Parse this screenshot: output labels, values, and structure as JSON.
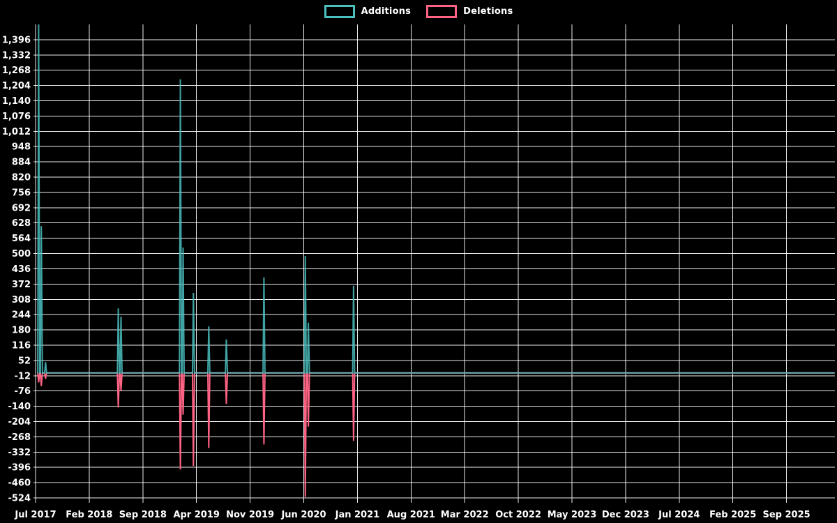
{
  "legend": {
    "additions_label": "Additions",
    "deletions_label": "Deletions"
  },
  "colors": {
    "background": "#000000",
    "additions": "#4bc0c0",
    "deletions": "#ff6384",
    "grid": "#ffffff",
    "axis_text": "#ffffff",
    "baseline_blend": "#78a9b1"
  },
  "chart_data": {
    "type": "line",
    "title": "",
    "xlabel": "",
    "ylabel": "",
    "legend_position": "top-center",
    "grid": "on",
    "background": "black",
    "ylim": [
      -524,
      1460
    ],
    "y_tick_step": 64,
    "y_ticks": [
      1396,
      1332,
      1268,
      1204,
      1140,
      1076,
      1012,
      948,
      884,
      820,
      756,
      692,
      628,
      564,
      500,
      436,
      372,
      308,
      244,
      180,
      116,
      52,
      -12,
      -76,
      -140,
      -204,
      -268,
      -332,
      -396,
      -460,
      -524
    ],
    "x_tick_labels": [
      "Jul 2017",
      "Feb 2018",
      "Sep 2018",
      "Apr 2019",
      "Nov 2019",
      "Jun 2020",
      "Jan 2021",
      "Aug 2021",
      "Mar 2022",
      "Oct 2022",
      "May 2023",
      "Dec 2023",
      "Jul 2024",
      "Feb 2025",
      "Sep 2025"
    ],
    "x_tick_interval_months": 7,
    "x_range_months_total": 104.3,
    "baseline_value": 0,
    "series": [
      {
        "name": "Additions",
        "color": "#4bc0c0"
      },
      {
        "name": "Deletions",
        "color": "#ff6384"
      }
    ],
    "events": [
      {
        "date": "2017-07",
        "m": 0.4,
        "additions": 1460,
        "deletions": -40,
        "note": "spike clipped at plot top"
      },
      {
        "date": "2017-08",
        "m": 0.75,
        "additions": 615,
        "deletions": -55
      },
      {
        "date": "2017-08",
        "m": 1.3,
        "additions": 45,
        "deletions": -25
      },
      {
        "date": "2018-05",
        "m": 10.8,
        "additions": 270,
        "deletions": -145
      },
      {
        "date": "2018-06",
        "m": 11.15,
        "additions": 235,
        "deletions": -75
      },
      {
        "date": "2019-02",
        "m": 18.9,
        "additions": 1230,
        "deletions": -405
      },
      {
        "date": "2019-02",
        "m": 19.25,
        "additions": 525,
        "deletions": -175
      },
      {
        "date": "2019-03",
        "m": 20.6,
        "additions": 335,
        "deletions": -390
      },
      {
        "date": "2019-05",
        "m": 22.6,
        "additions": 195,
        "deletions": -315
      },
      {
        "date": "2019-08",
        "m": 24.9,
        "additions": 140,
        "deletions": -130
      },
      {
        "date": "2020-01",
        "m": 29.8,
        "additions": 400,
        "deletions": -300
      },
      {
        "date": "2020-06",
        "m": 35.2,
        "additions": 490,
        "deletions": -520
      },
      {
        "date": "2020-07",
        "m": 35.6,
        "additions": 210,
        "deletions": -225
      },
      {
        "date": "2021-01",
        "m": 41.5,
        "additions": 365,
        "deletions": -285
      }
    ]
  }
}
